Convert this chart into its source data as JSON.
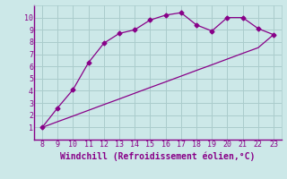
{
  "xlabel": "Windchill (Refroidissement éolien,°C)",
  "x_data": [
    8,
    9,
    10,
    11,
    12,
    13,
    14,
    15,
    16,
    17,
    18,
    19,
    20,
    21,
    22,
    23
  ],
  "y_data": [
    1,
    2.6,
    4.1,
    6.3,
    7.9,
    8.7,
    9.0,
    9.8,
    10.2,
    10.4,
    9.4,
    8.9,
    10.0,
    10.0,
    9.1,
    8.6
  ],
  "y_straight": [
    1.0,
    1.47,
    1.93,
    2.4,
    2.87,
    3.33,
    3.8,
    4.27,
    4.73,
    5.2,
    5.67,
    6.13,
    6.6,
    7.07,
    7.53,
    8.6
  ],
  "line_color": "#880088",
  "bg_color": "#cce8e8",
  "grid_color": "#aacccc",
  "spine_color": "#880088",
  "xlim": [
    7.5,
    23.5
  ],
  "ylim": [
    0,
    11
  ],
  "xticks": [
    8,
    9,
    10,
    11,
    12,
    13,
    14,
    15,
    16,
    17,
    18,
    19,
    20,
    21,
    22,
    23
  ],
  "yticks": [
    1,
    2,
    3,
    4,
    5,
    6,
    7,
    8,
    9,
    10
  ],
  "tick_fontsize": 6.0,
  "xlabel_fontsize": 7.0,
  "marker": "D",
  "markersize": 2.5
}
